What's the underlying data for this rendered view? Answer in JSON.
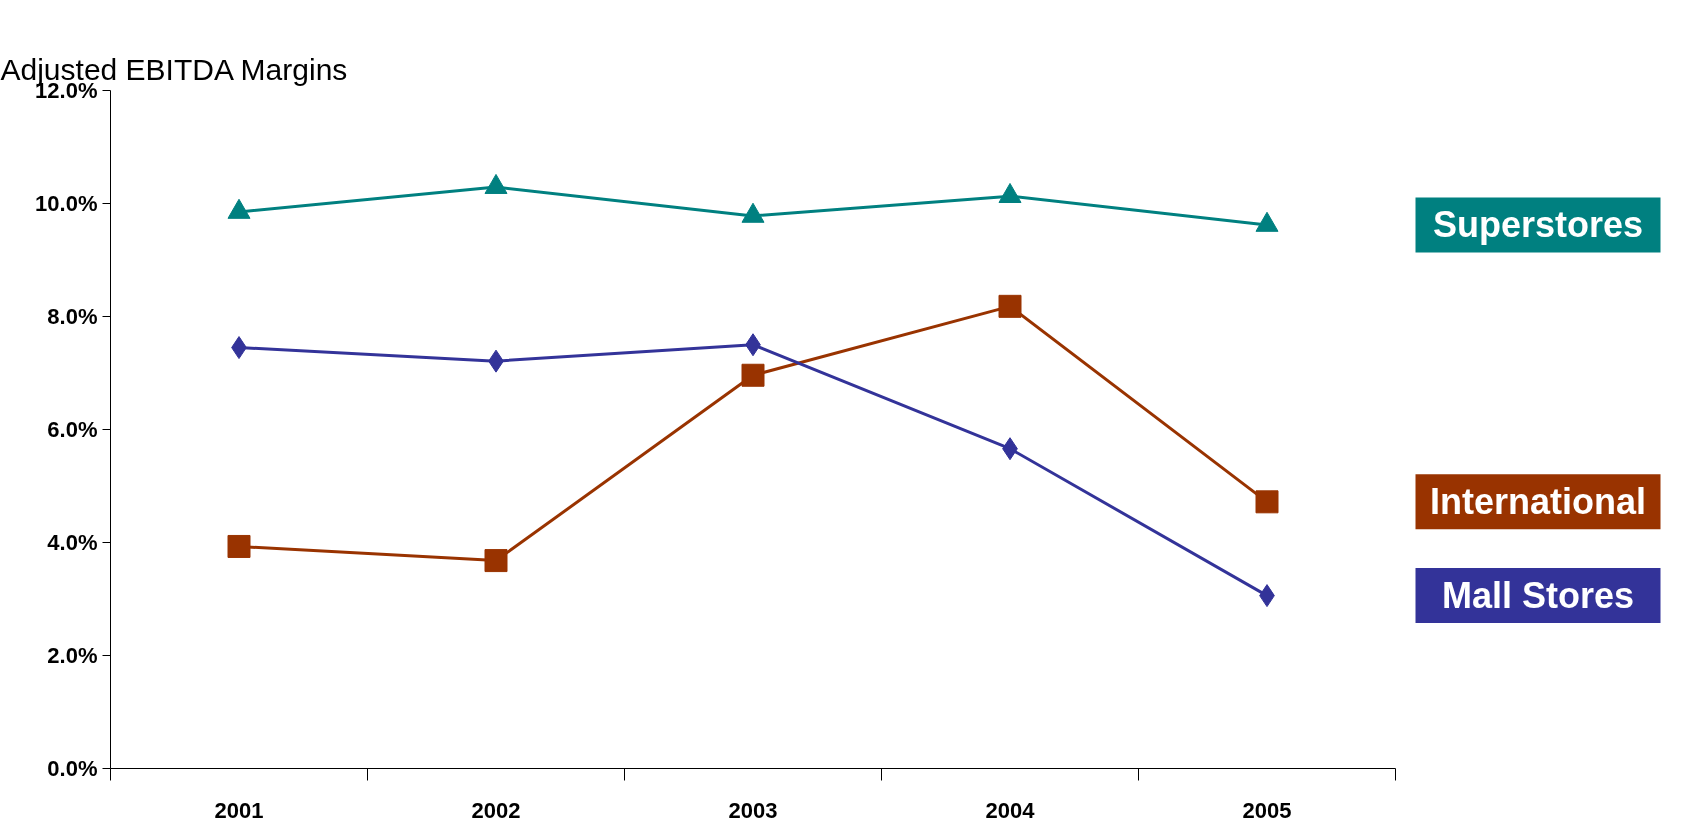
{
  "chart_data": {
    "type": "line",
    "title": "Adjusted EBITDA Margins",
    "categories": [
      "2001",
      "2002",
      "2003",
      "2004",
      "2005"
    ],
    "series": [
      {
        "name": "Superstores",
        "color": "#008080",
        "marker": "triangle",
        "values": [
          9.85,
          10.29,
          9.78,
          10.13,
          9.62
        ]
      },
      {
        "name": "International",
        "color": "#993300",
        "marker": "square",
        "values": [
          3.93,
          3.68,
          6.96,
          8.18,
          4.72
        ]
      },
      {
        "name": "Mall Stores",
        "color": "#333399",
        "marker": "diamond",
        "values": [
          7.45,
          7.21,
          7.5,
          5.66,
          3.06
        ]
      }
    ],
    "ylim": [
      0,
      12
    ],
    "yticks": [
      {
        "value": 0,
        "label": "0.0%"
      },
      {
        "value": 2,
        "label": "2.0%"
      },
      {
        "value": 4,
        "label": "4.0%"
      },
      {
        "value": 6,
        "label": "6.0%"
      },
      {
        "value": 8,
        "label": "8.0%"
      },
      {
        "value": 10,
        "label": "10.0%"
      },
      {
        "value": 12,
        "label": "12.0%"
      }
    ],
    "grid": false
  }
}
